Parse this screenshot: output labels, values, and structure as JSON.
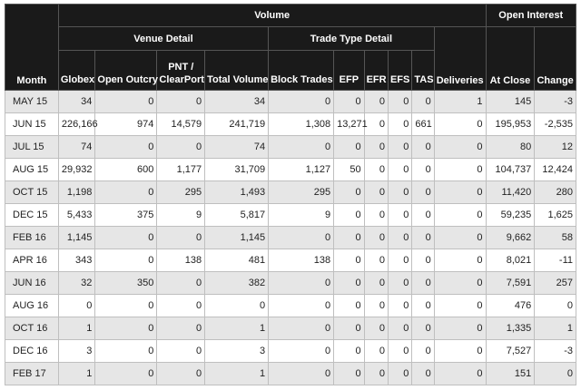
{
  "headers": {
    "month": "Month",
    "volume": "Volume",
    "open_interest": "Open Interest",
    "venue_detail": "Venue Detail",
    "trade_type_detail": "Trade Type Detail",
    "columns": [
      "Globex",
      "Open Outcry",
      "PNT / ClearPort",
      "Total Volume",
      "Block Trades",
      "EFP",
      "EFR",
      "EFS",
      "TAS",
      "Deliveries",
      "At Close",
      "Change"
    ]
  },
  "rows": [
    [
      "MAY 15",
      "34",
      "0",
      "0",
      "34",
      "0",
      "0",
      "0",
      "0",
      "0",
      "1",
      "145",
      "-3"
    ],
    [
      "JUN 15",
      "226,166",
      "974",
      "14,579",
      "241,719",
      "1,308",
      "13,271",
      "0",
      "0",
      "661",
      "0",
      "195,953",
      "-2,535"
    ],
    [
      "JUL 15",
      "74",
      "0",
      "0",
      "74",
      "0",
      "0",
      "0",
      "0",
      "0",
      "0",
      "80",
      "12"
    ],
    [
      "AUG 15",
      "29,932",
      "600",
      "1,177",
      "31,709",
      "1,127",
      "50",
      "0",
      "0",
      "0",
      "0",
      "104,737",
      "12,424"
    ],
    [
      "OCT 15",
      "1,198",
      "0",
      "295",
      "1,493",
      "295",
      "0",
      "0",
      "0",
      "0",
      "0",
      "11,420",
      "280"
    ],
    [
      "DEC 15",
      "5,433",
      "375",
      "9",
      "5,817",
      "9",
      "0",
      "0",
      "0",
      "0",
      "0",
      "59,235",
      "1,625"
    ],
    [
      "FEB 16",
      "1,145",
      "0",
      "0",
      "1,145",
      "0",
      "0",
      "0",
      "0",
      "0",
      "0",
      "9,662",
      "58"
    ],
    [
      "APR 16",
      "343",
      "0",
      "138",
      "481",
      "138",
      "0",
      "0",
      "0",
      "0",
      "0",
      "8,021",
      "-11"
    ],
    [
      "JUN 16",
      "32",
      "350",
      "0",
      "382",
      "0",
      "0",
      "0",
      "0",
      "0",
      "0",
      "7,591",
      "257"
    ],
    [
      "AUG 16",
      "0",
      "0",
      "0",
      "0",
      "0",
      "0",
      "0",
      "0",
      "0",
      "0",
      "476",
      "0"
    ],
    [
      "OCT 16",
      "1",
      "0",
      "0",
      "1",
      "0",
      "0",
      "0",
      "0",
      "0",
      "0",
      "1,335",
      "1"
    ],
    [
      "DEC 16",
      "3",
      "0",
      "0",
      "3",
      "0",
      "0",
      "0",
      "0",
      "0",
      "0",
      "7,527",
      "-3"
    ],
    [
      "FEB 17",
      "1",
      "0",
      "0",
      "1",
      "0",
      "0",
      "0",
      "0",
      "0",
      "0",
      "151",
      "0"
    ]
  ]
}
